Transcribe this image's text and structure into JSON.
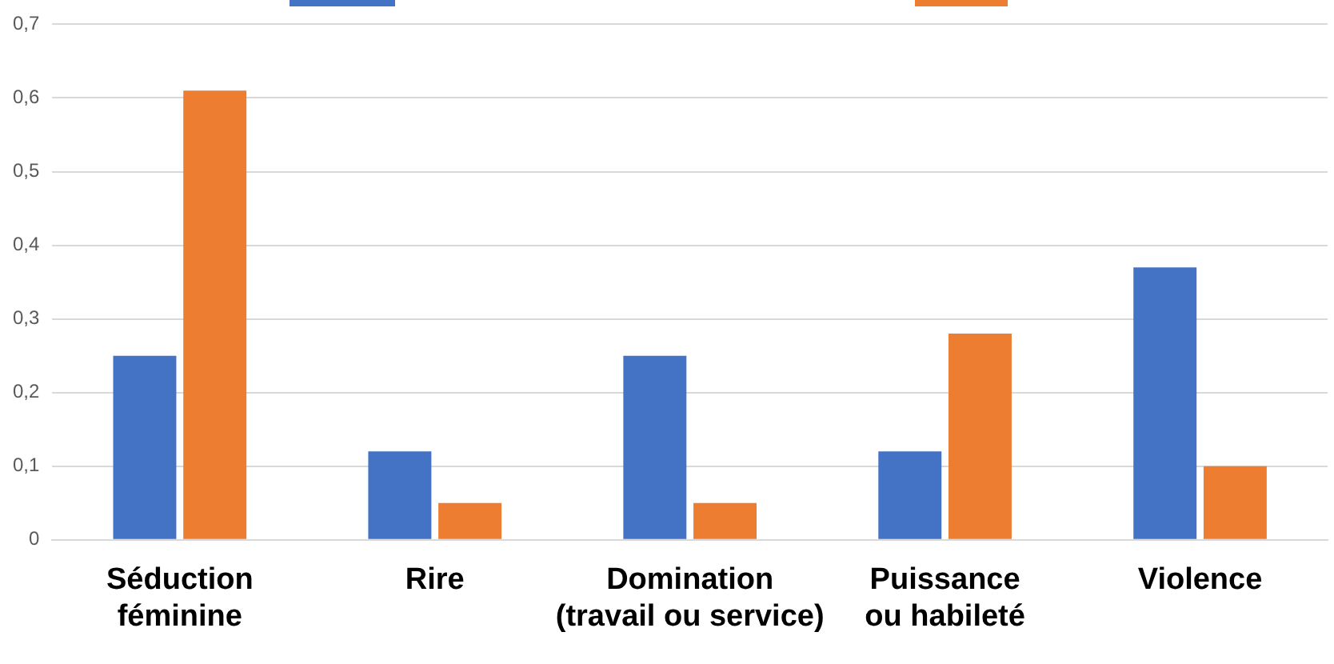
{
  "chart_data": {
    "type": "bar",
    "categories": [
      "Séduction féminine",
      "Rire",
      "Domination (travail ou service)",
      "Puissance ou habileté",
      "Violence"
    ],
    "series": [
      {
        "color": "#4472c4",
        "values": [
          0.25,
          0.12,
          0.25,
          0.12,
          0.37
        ]
      },
      {
        "color": "#ed7d31",
        "values": [
          0.61,
          0.05,
          0.05,
          0.28,
          0.1
        ]
      }
    ],
    "ylim": [
      0,
      0.7
    ],
    "yticks": [
      {
        "value": 0,
        "label": "0"
      },
      {
        "value": 0.1,
        "label": "0,1"
      },
      {
        "value": 0.2,
        "label": "0,2"
      },
      {
        "value": 0.3,
        "label": "0,3"
      },
      {
        "value": 0.4,
        "label": "0,4"
      },
      {
        "value": 0.5,
        "label": "0,5"
      },
      {
        "value": 0.6,
        "label": "0,6"
      },
      {
        "value": 0.7,
        "label": "0,7"
      }
    ],
    "grid": "y"
  }
}
